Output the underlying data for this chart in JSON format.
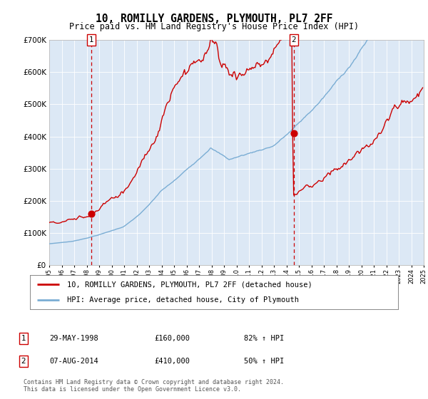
{
  "title": "10, ROMILLY GARDENS, PLYMOUTH, PL7 2FF",
  "subtitle": "Price paid vs. HM Land Registry's House Price Index (HPI)",
  "bg_color": "#ffffff",
  "plot_bg_color": "#dce8f5",
  "legend_line1": "10, ROMILLY GARDENS, PLYMOUTH, PL7 2FF (detached house)",
  "legend_line2": "HPI: Average price, detached house, City of Plymouth",
  "sale1_date": "29-MAY-1998",
  "sale1_price": "£160,000",
  "sale1_hpi": "82% ↑ HPI",
  "sale2_date": "07-AUG-2014",
  "sale2_price": "£410,000",
  "sale2_hpi": "50% ↑ HPI",
  "footer": "Contains HM Land Registry data © Crown copyright and database right 2024.\nThis data is licensed under the Open Government Licence v3.0.",
  "red_color": "#cc0000",
  "blue_color": "#7aadd4",
  "grid_color": "#c8d8e8",
  "ylim_max": 700000,
  "ylim_min": 0,
  "sale1_year": 1998.37,
  "sale2_year": 2014.58,
  "sale1_price_val": 160000,
  "sale2_price_val": 410000
}
